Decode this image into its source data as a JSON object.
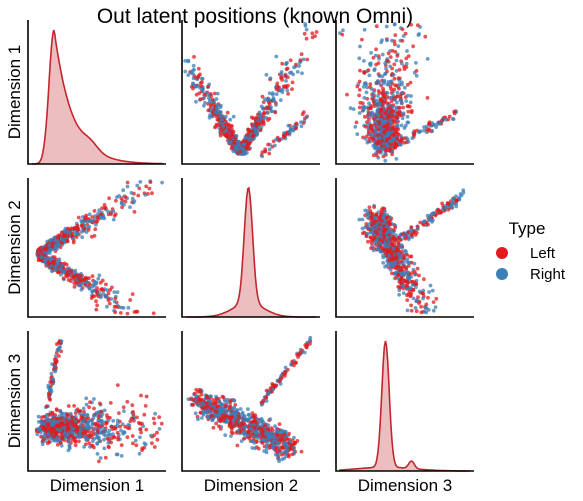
{
  "chart_data": {
    "type": "pairplot",
    "title": "Out latent positions (known Omni)",
    "variables": [
      "Dimension 1",
      "Dimension 2",
      "Dimension 3"
    ],
    "diagonal": "kde",
    "offdiagonal": "scatter",
    "grid": false,
    "legend": {
      "title": "Type",
      "placement": "right",
      "entries": [
        {
          "label": "Left",
          "color": "#e31a1c"
        },
        {
          "label": "Right",
          "color": "#3a7fb8"
        }
      ]
    },
    "kde_color": "#c1272d",
    "approx_points_per_panel": 900
  }
}
